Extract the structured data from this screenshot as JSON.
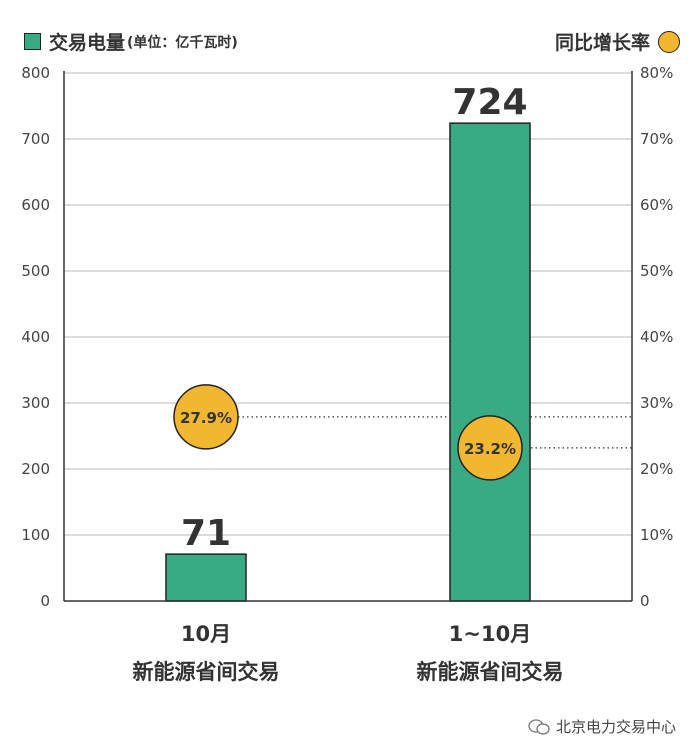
{
  "legend": {
    "bar_label": "交易电量",
    "bar_unit": "(单位：亿千瓦时)",
    "dot_label": "同比增长率"
  },
  "watermark": "北京电力交易中心",
  "colors": {
    "bar": "#3aaa85",
    "dot": "#f2b731",
    "grid": "#c8c8c8",
    "outline": "#222222"
  },
  "chart_data": {
    "type": "bar",
    "categories": [
      [
        "10月",
        "新能源省间交易"
      ],
      [
        "1~10月",
        "新能源省间交易"
      ]
    ],
    "series": [
      {
        "name": "交易电量",
        "axis": "left",
        "values": [
          71,
          724
        ],
        "labels": [
          "71",
          "724"
        ]
      },
      {
        "name": "同比增长率",
        "axis": "right",
        "values": [
          27.9,
          23.2
        ],
        "labels": [
          "27.9%",
          "23.2%"
        ]
      }
    ],
    "y_left": {
      "min": 0,
      "max": 800,
      "ticks": [
        "0",
        "100",
        "200",
        "300",
        "400",
        "500",
        "600",
        "700",
        "800"
      ]
    },
    "y_right": {
      "min": 0,
      "max": 80,
      "ticks": [
        "0",
        "10%",
        "20%",
        "30%",
        "40%",
        "50%",
        "60%",
        "70%",
        "80%"
      ]
    },
    "grid": true
  }
}
